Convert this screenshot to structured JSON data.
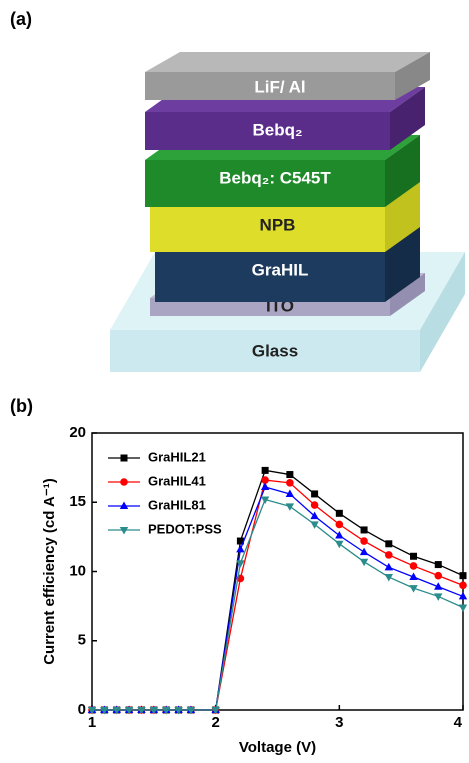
{
  "panel_a": {
    "label": "(a)",
    "layers": [
      "Glass",
      "ITO",
      "GraHIL",
      "NPB",
      "Bebq₂: C545T",
      "Bebq₂",
      "LiF/ Al"
    ]
  },
  "chart_data": {
    "type": "line",
    "label": "(b)",
    "x_label": "Voltage (V)",
    "y_label": "Current efficiency (cd A⁻¹)",
    "x": [
      1,
      1.1,
      1.2,
      1.3,
      1.4,
      1.5,
      1.6,
      1.7,
      1.8,
      2.0,
      2.2,
      2.4,
      2.6,
      2.8,
      3.0,
      3.2,
      3.4,
      3.6,
      3.8,
      4.0
    ],
    "series": [
      {
        "name": "GraHIL21",
        "color": "#000000",
        "marker": "square",
        "values": [
          0,
          0,
          0,
          0,
          0,
          0,
          0,
          0,
          0,
          0,
          12.2,
          17.3,
          17.0,
          15.6,
          14.2,
          13.0,
          12.0,
          11.1,
          10.5,
          9.7
        ]
      },
      {
        "name": "GraHIL41",
        "color": "#ff0000",
        "marker": "circle",
        "values": [
          0,
          0,
          0,
          0,
          0,
          0,
          0,
          0,
          0,
          0,
          9.5,
          16.6,
          16.4,
          14.8,
          13.4,
          12.2,
          11.2,
          10.4,
          9.7,
          9.0
        ]
      },
      {
        "name": "GraHIL81",
        "color": "#0000ff",
        "marker": "triangle-up",
        "values": [
          0,
          0,
          0,
          0,
          0,
          0,
          0,
          0,
          0,
          0,
          11.6,
          16.1,
          15.6,
          14.0,
          12.6,
          11.4,
          10.3,
          9.6,
          8.9,
          8.2
        ]
      },
      {
        "name": "PEDOT:PSS",
        "color": "#2a8c8c",
        "marker": "triangle-down",
        "values": [
          0,
          0,
          0,
          0,
          0,
          0,
          0,
          0,
          0,
          0,
          10.6,
          15.2,
          14.7,
          13.4,
          12.0,
          10.7,
          9.6,
          8.8,
          8.2,
          7.4
        ]
      }
    ],
    "xlim": [
      1,
      4
    ],
    "xticks": [
      1,
      2,
      3,
      4
    ],
    "ylim": [
      0,
      20
    ],
    "yticks": [
      0,
      5,
      10,
      15,
      20
    ],
    "legend": "upper left"
  }
}
